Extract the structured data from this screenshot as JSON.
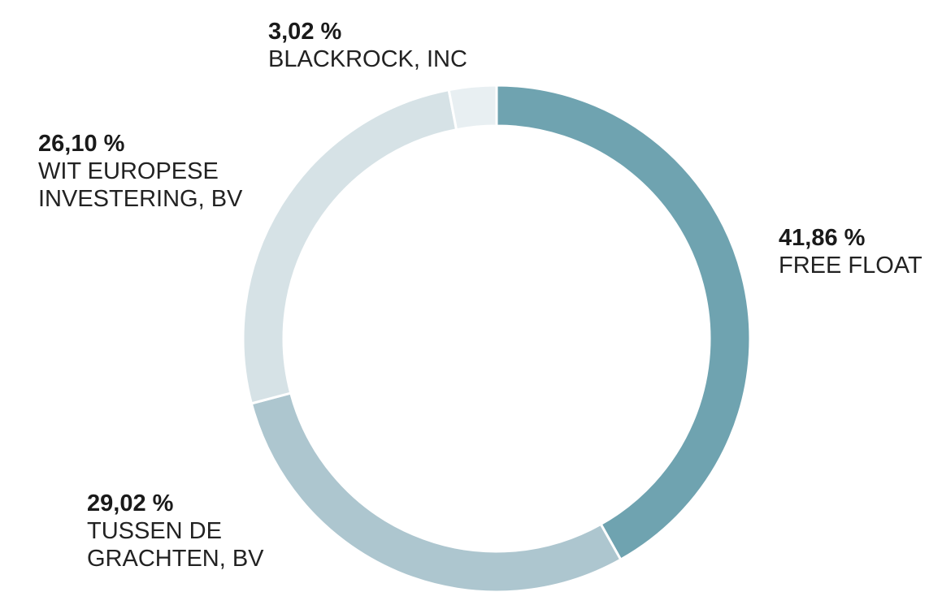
{
  "chart_data": {
    "type": "donut",
    "categories": [
      "FREE FLOAT",
      "TUSSEN DE GRACHTEN, BV",
      "WIT EUROPESE INVESTERING, BV",
      "BLACKROCK, INC"
    ],
    "values": [
      41.86,
      29.02,
      26.1,
      3.02
    ],
    "value_labels": [
      "41,86 %",
      "29,02 %",
      "26,10 %",
      "3,02 %"
    ],
    "colors": [
      "#6fa3b0",
      "#adc6cf",
      "#d6e2e6",
      "#e8eff2"
    ]
  }
}
